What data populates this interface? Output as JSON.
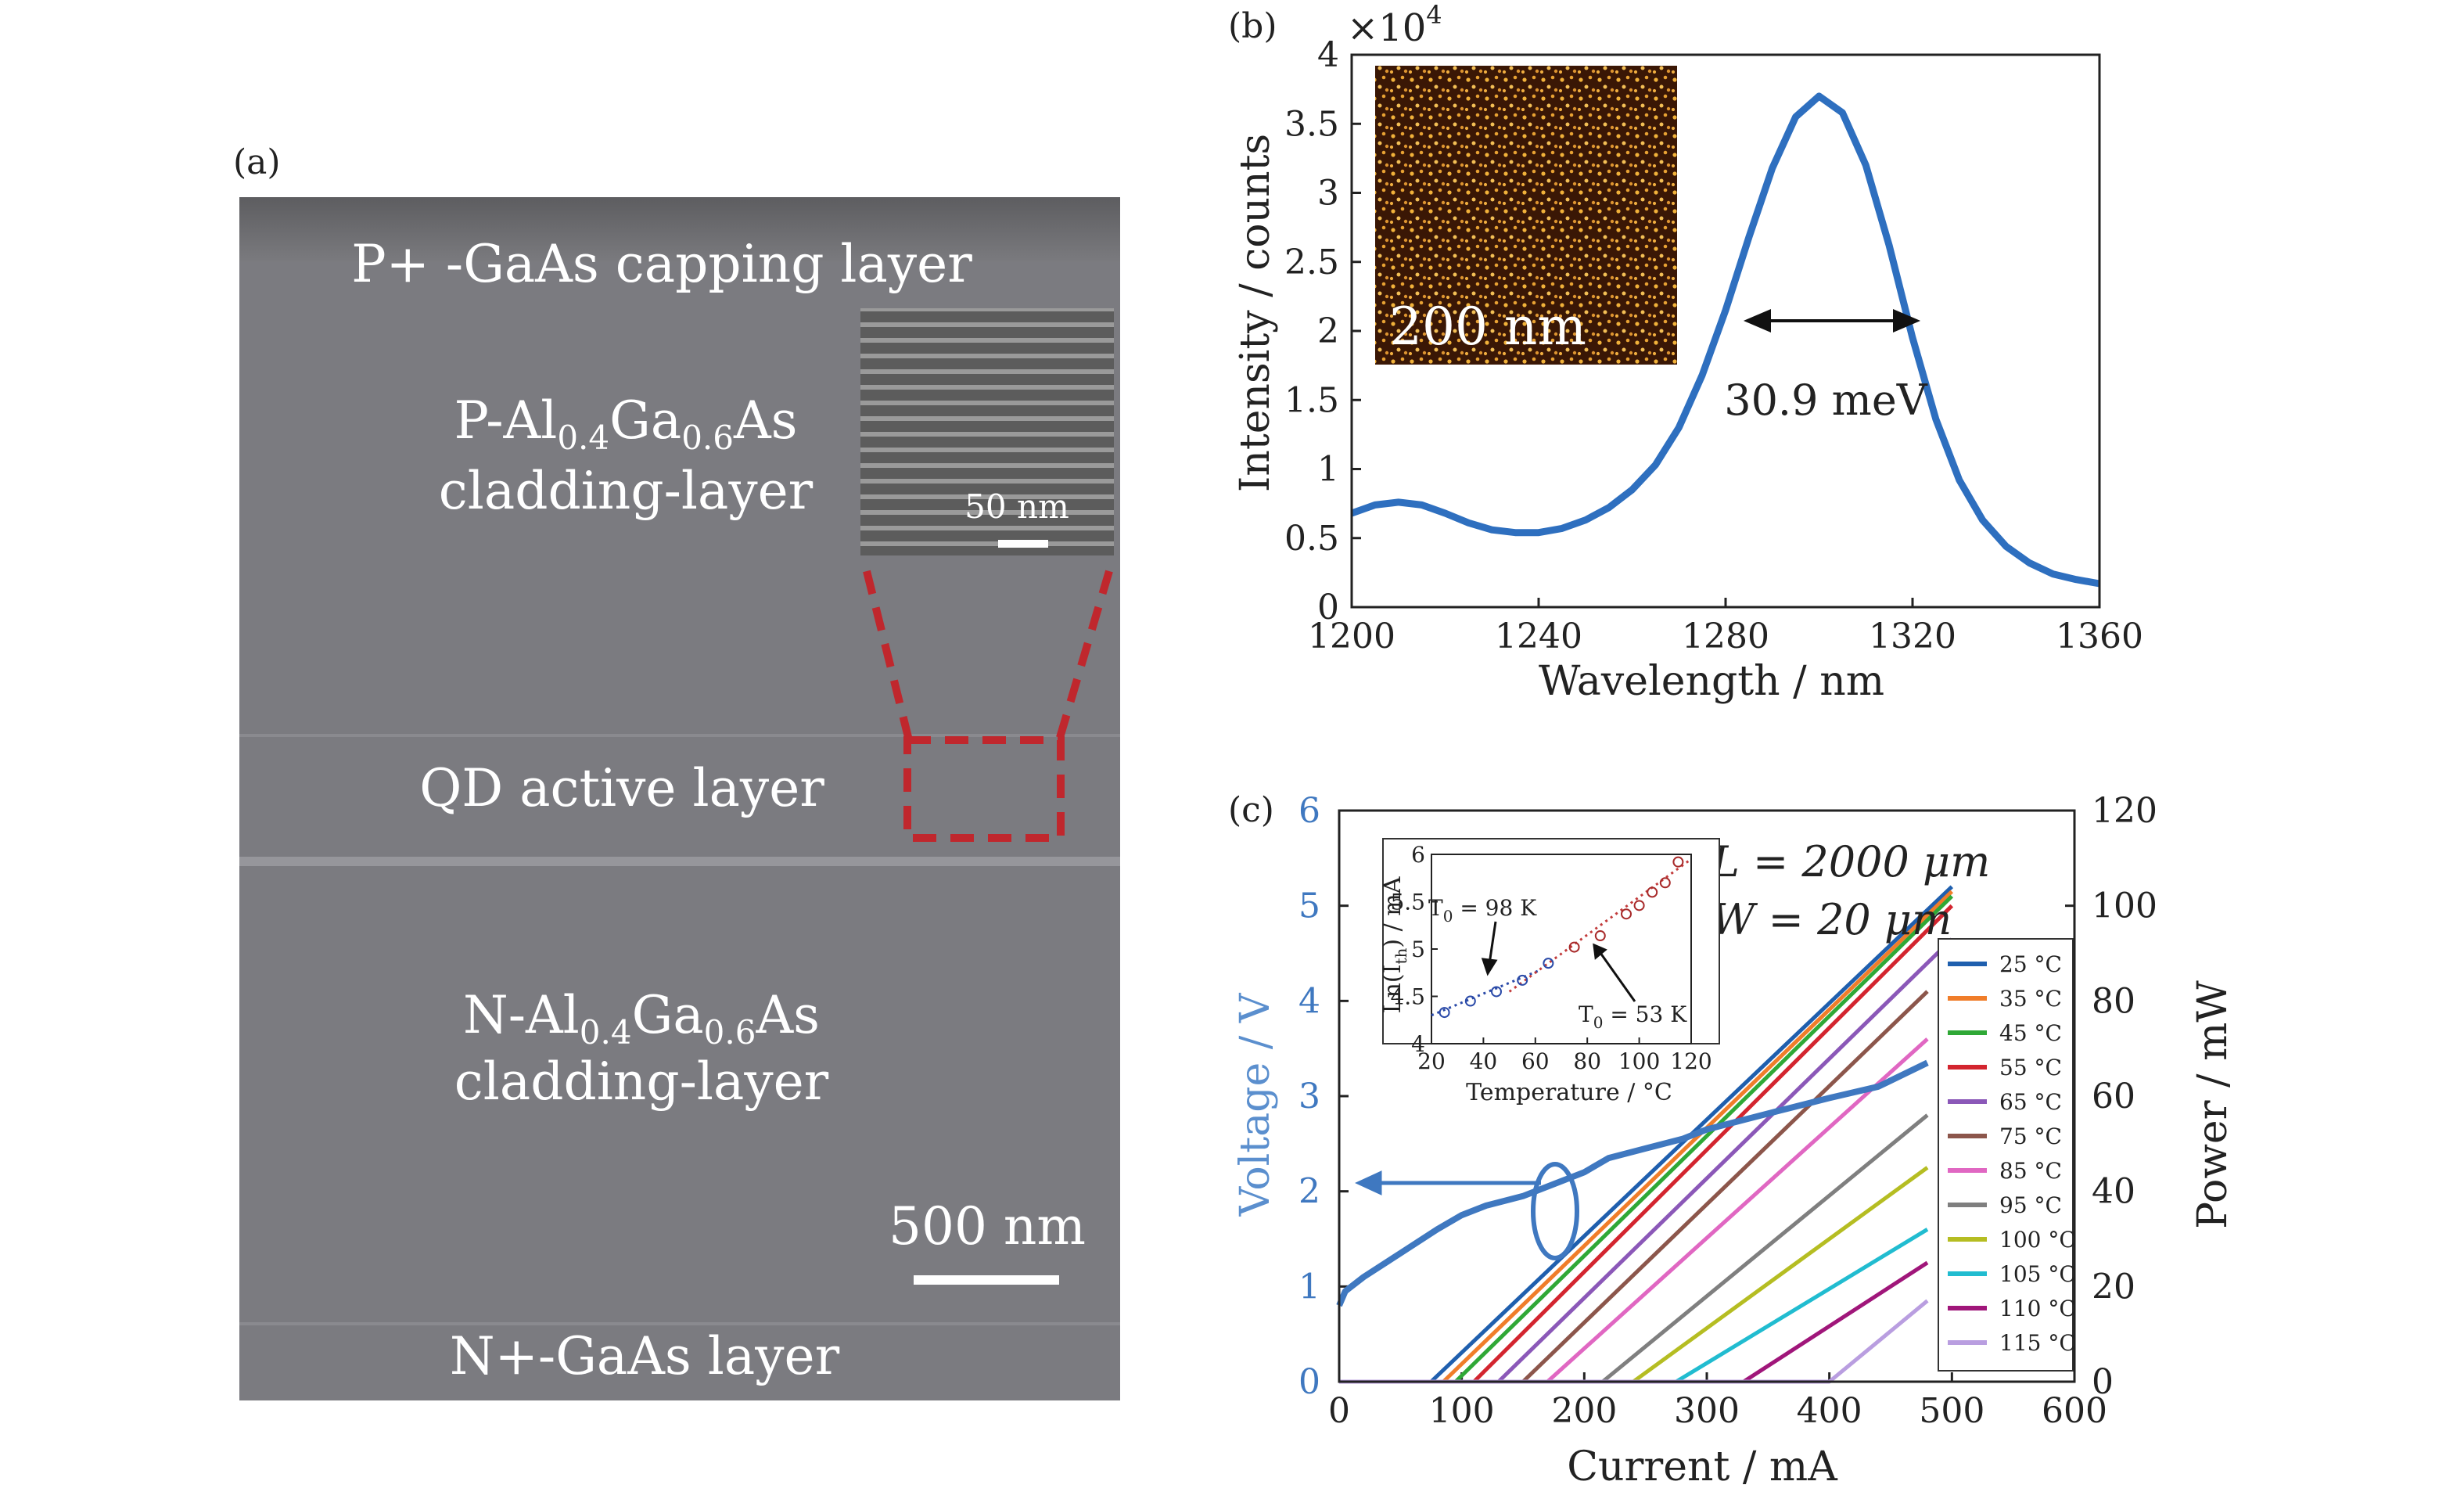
{
  "panel_a": {
    "label": "(a)",
    "layers": {
      "capping": "P+ -GaAs capping layer",
      "p_clad_prefix": "P-Al",
      "p_clad_sub1": "0.4",
      "p_clad_mid": "Ga",
      "p_clad_sub2": "0.6",
      "p_clad_suffix": "As",
      "p_clad_line2": "cladding-layer",
      "active": "QD active layer",
      "n_clad_prefix": "N-Al",
      "n_clad_sub1": "0.4",
      "n_clad_mid": "Ga",
      "n_clad_sub2": "0.6",
      "n_clad_suffix": "As",
      "n_clad_line2": "cladding-layer",
      "n_gaas": "N+-GaAs layer"
    },
    "scale_bar": "500 nm",
    "inset_scale_bar": "50 nm",
    "highlight_color": "#c0272d"
  },
  "chart_data": [
    {
      "panel": "(b)",
      "type": "line",
      "xlabel": "Wavelength / nm",
      "ylabel": "Intensity / counts",
      "multiplier": "×10",
      "multiplier_exp": "4",
      "xlim": [
        1200,
        1360
      ],
      "ylim": [
        0,
        4
      ],
      "xticks": [
        1200,
        1240,
        1280,
        1320,
        1360
      ],
      "yticks": [
        0,
        0.5,
        1,
        1.5,
        2,
        2.5,
        3,
        3.5,
        4
      ],
      "series": [
        {
          "color": "#2e6fbf",
          "x": [
            1200,
            1205,
            1210,
            1215,
            1220,
            1225,
            1230,
            1235,
            1240,
            1245,
            1250,
            1255,
            1260,
            1265,
            1270,
            1275,
            1280,
            1285,
            1290,
            1295,
            1300,
            1305,
            1310,
            1315,
            1320,
            1325,
            1330,
            1335,
            1340,
            1345,
            1350,
            1355,
            1360
          ],
          "y": [
            0.68,
            0.74,
            0.76,
            0.74,
            0.68,
            0.61,
            0.56,
            0.54,
            0.54,
            0.57,
            0.63,
            0.72,
            0.85,
            1.03,
            1.3,
            1.68,
            2.15,
            2.68,
            3.18,
            3.55,
            3.7,
            3.58,
            3.2,
            2.62,
            1.95,
            1.36,
            0.92,
            0.63,
            0.44,
            0.32,
            0.24,
            0.2,
            0.17
          ]
        }
      ],
      "annotations": {
        "fwhm": "30.9 meV",
        "inset_scale": "200 nm"
      }
    },
    {
      "panel": "(c)",
      "type": "line",
      "xlabel": "Current / mA",
      "ylabel_left": "Voltage / V",
      "ylabel_right": "Power / mW",
      "xlim": [
        0,
        600
      ],
      "ylim_left": [
        0,
        6
      ],
      "ylim_right": [
        0,
        120
      ],
      "xticks": [
        0,
        100,
        200,
        300,
        400,
        500,
        600
      ],
      "yticks_left": [
        0,
        1,
        2,
        3,
        4,
        5,
        6
      ],
      "yticks_right": [
        0,
        20,
        40,
        60,
        80,
        100,
        120
      ],
      "voltage_color": "#3f78c0",
      "voltage_series": {
        "x": [
          0,
          5,
          20,
          50,
          80,
          100,
          120,
          150,
          180,
          200,
          220,
          250,
          280,
          300,
          330,
          360,
          400,
          440,
          480
        ],
        "y": [
          0.8,
          0.95,
          1.1,
          1.35,
          1.6,
          1.75,
          1.85,
          1.95,
          2.1,
          2.2,
          2.35,
          2.45,
          2.55,
          2.65,
          2.75,
          2.85,
          2.98,
          3.1,
          3.35
        ]
      },
      "labels": {
        "length": "L = 2000 μm",
        "width": "W = 20 μm"
      },
      "power_series": [
        {
          "name": "25 °C",
          "color": "#1f5fae",
          "threshold": 75,
          "end": 500,
          "power_end": 104
        },
        {
          "name": "35 °C",
          "color": "#f07d2a",
          "threshold": 85,
          "end": 500,
          "power_end": 103
        },
        {
          "name": "45 °C",
          "color": "#2fa836",
          "threshold": 95,
          "end": 500,
          "power_end": 102
        },
        {
          "name": "55 °C",
          "color": "#d3252f",
          "threshold": 110,
          "end": 500,
          "power_end": 100
        },
        {
          "name": "65 °C",
          "color": "#8b58b8",
          "threshold": 130,
          "end": 500,
          "power_end": 93
        },
        {
          "name": "75 °C",
          "color": "#8c564b",
          "threshold": 150,
          "end": 480,
          "power_end": 82
        },
        {
          "name": "85 °C",
          "color": "#e067c2",
          "threshold": 170,
          "end": 480,
          "power_end": 72
        },
        {
          "name": "95 °C",
          "color": "#7f7f7f",
          "threshold": 215,
          "end": 480,
          "power_end": 56
        },
        {
          "name": "100 °C",
          "color": "#b5bd22",
          "threshold": 240,
          "end": 480,
          "power_end": 45
        },
        {
          "name": "105 °C",
          "color": "#21bcd0",
          "threshold": 275,
          "end": 480,
          "power_end": 32
        },
        {
          "name": "110 °C",
          "color": "#a0167a",
          "threshold": 330,
          "end": 480,
          "power_end": 25
        },
        {
          "name": "115 °C",
          "color": "#b99ee0",
          "threshold": 400,
          "end": 480,
          "power_end": 17
        }
      ],
      "inset": {
        "xlabel": "Temperature / °C",
        "ylabel": "Ln(I",
        "ylabel_sub": "th",
        "ylabel_end": ") / mA",
        "xlim": [
          20,
          120
        ],
        "ylim": [
          4,
          6
        ],
        "xticks": [
          20,
          40,
          60,
          80,
          100,
          120
        ],
        "yticks": [
          4,
          4.5,
          5,
          5.5,
          6
        ],
        "t0_low": "T",
        "t0_low_sub": "0",
        "t0_low_val": " = 98 K",
        "t0_high": "T",
        "t0_high_sub": "0",
        "t0_high_val": " = 53 K",
        "points_x": [
          25,
          35,
          45,
          55,
          65,
          75,
          85,
          95,
          100,
          105,
          110,
          115
        ],
        "points_y": [
          4.33,
          4.45,
          4.55,
          4.67,
          4.85,
          5.02,
          5.14,
          5.37,
          5.46,
          5.6,
          5.7,
          5.92
        ]
      }
    }
  ]
}
